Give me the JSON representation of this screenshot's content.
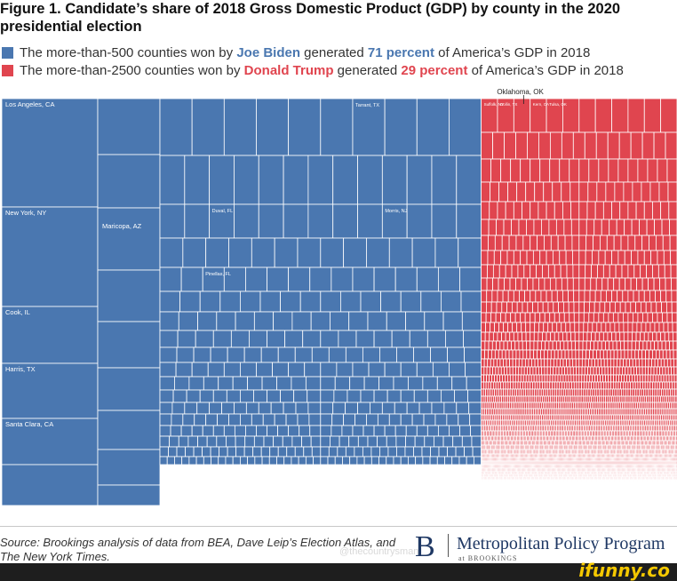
{
  "title": "Figure 1. Candidate’s share of 2018 Gross Domestic Product (GDP) by county in the 2020 presidential election",
  "legend": [
    {
      "pre": "The more-than-500 counties won by ",
      "name": "Joe Biden",
      "mid": " generated ",
      "pct": "71 percent",
      "post": " of America’s GDP in 2018",
      "color": "#4a77b0"
    },
    {
      "pre": "The more-than-2500 counties won by ",
      "name": "Donald Trump",
      "mid": " generated ",
      "pct": "29 percent",
      "post": " of America’s GDP in 2018",
      "color": "#e0454f"
    }
  ],
  "chart_data": {
    "type": "treemap",
    "title": "Candidate’s share of 2018 Gross Domestic Product (GDP) by county",
    "series": [
      {
        "name": "Biden counties",
        "counties": "more than 500",
        "gdp_share_percent": 71,
        "color": "#4a77b0"
      },
      {
        "name": "Trump counties",
        "counties": "more than 2500",
        "gdp_share_percent": 29,
        "color": "#e0454f"
      }
    ],
    "labels": {
      "la": "Los Angeles, CA",
      "ny": "New York, NY",
      "maricopa": "Maricopa, AZ",
      "cook": "Cook, IL",
      "harris": "Harris, TX",
      "santaclara": "Santa Clara, CA",
      "tarrant": "Tarrant, TX",
      "duval": "Duval, FL",
      "pinellas": "Pinellas, FL",
      "morris": "Morris, NJ",
      "oklahoma": "Oklahoma, OK",
      "suffolk": "Suffolk, NY",
      "collin": "Collin, TX",
      "kern": "Kern, CA",
      "tulsa": "Tulsa, OK"
    }
  },
  "source": "Source: Brookings analysis of data from BEA, Dave Leip’s Election Atlas, and The New York Times.",
  "brand": {
    "letter": "B",
    "name": "Metropolitan Policy Program",
    "sub": "at BROOKINGS"
  },
  "watermark": "@thecountrysman",
  "site": "ifunny.co"
}
